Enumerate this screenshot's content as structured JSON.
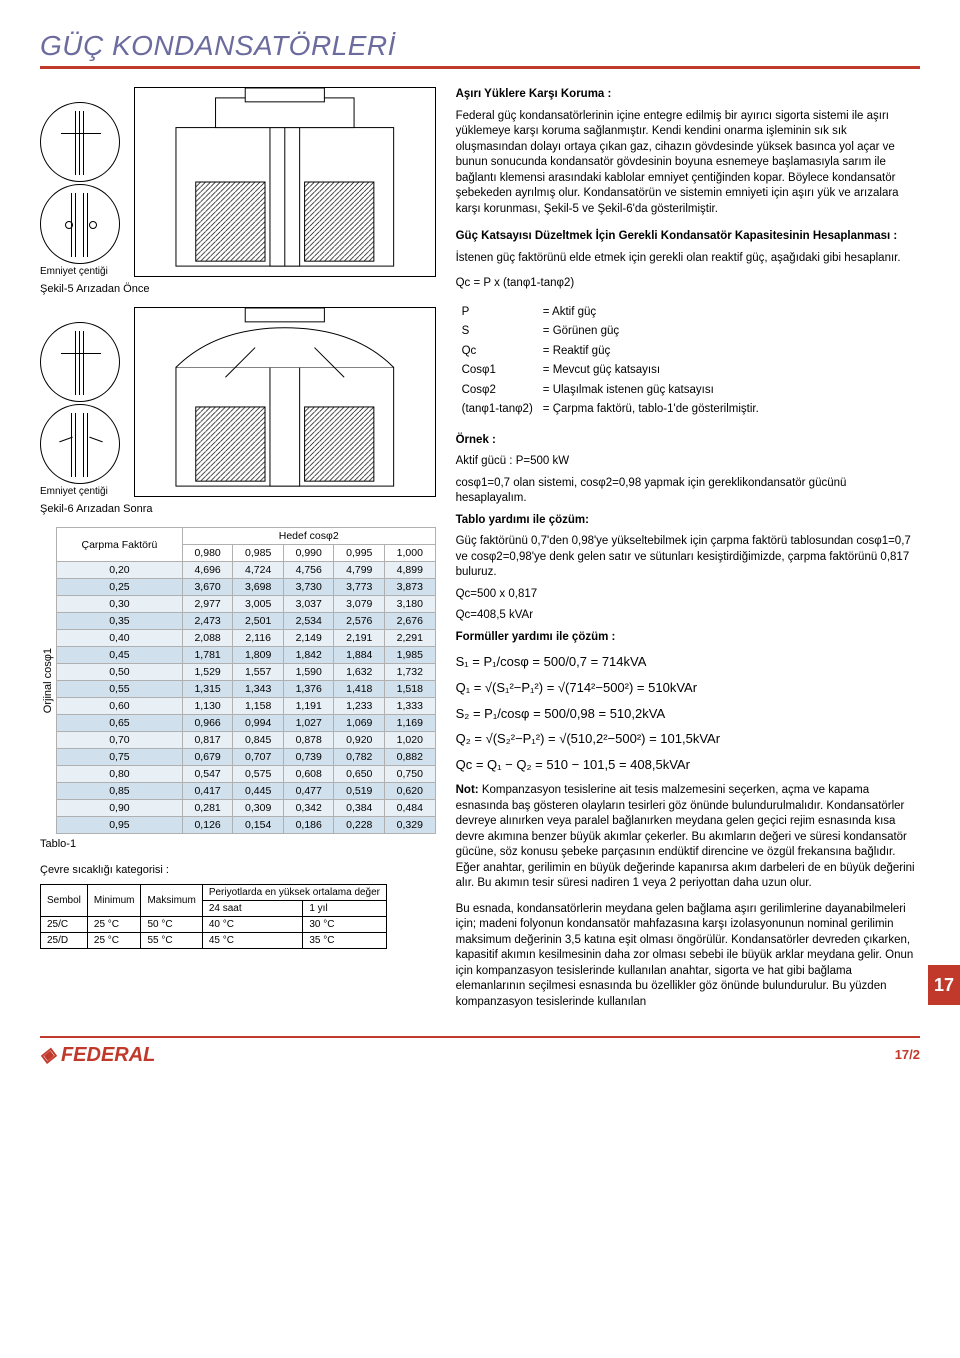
{
  "title": "GÜÇ KONDANSATÖRLERİ",
  "colors": {
    "accent": "#c0392b",
    "title_text": "#6b6b9e",
    "row_light": "#e8f0f6",
    "row_dark": "#d0e0ec",
    "border": "#b0b0b0"
  },
  "sections": {
    "overload": {
      "heading": "Aşırı Yüklere Karşı Koruma :",
      "text": "Federal güç kondansatörlerinin içine entegre edilmiş bir ayırıcı sigorta sistemi ile aşırı yüklemeye karşı koruma sağlanmıştır. Kendi kendini onarma işleminin sık sık oluşmasından dolayı ortaya çıkan gaz, cihazın gövdesinde yüksek basınca yol açar ve bunun sonucunda kondansatör gövdesinin boyuna esnemeye başlamasıyla sarım ile bağlantı klemensi arasındaki kablolar emniyet çentiğinden kopar. Böylece kondansatör şebekeden ayrılmış olur. Kondansatörün ve sistemin emniyeti için aşırı yük ve arızalara karşı korunması, Şekil-5 ve Şekil-6'da gösterilmiştir."
    },
    "calc": {
      "heading": "Güç Katsayısı Düzeltmek İçin Gerekli Kondansatör Kapasitesinin Hesaplanması :",
      "text": "İstenen güç faktörünü elde etmek için gerekli olan reaktif güç, aşağıdaki gibi hesaplanır.",
      "formula": "Qc = P x (tanφ1-tanφ2)"
    },
    "defs": [
      [
        "P",
        "= Aktif güç"
      ],
      [
        "S",
        "= Görünen güç"
      ],
      [
        "Qc",
        "= Reaktif güç"
      ],
      [
        "Cosφ1",
        "= Mevcut güç katsayısı"
      ],
      [
        "Cosφ2",
        "= Ulaşılmak istenen güç katsayısı"
      ],
      [
        "(tanφ1-tanφ2)",
        "= Çarpma faktörü, tablo-1'de gösterilmiştir."
      ]
    ],
    "example": {
      "heading": "Örnek :",
      "line1": "Aktif gücü : P=500 kW",
      "line2": "cosφ1=0,7 olan sistemi, cosφ2=0,98 yapmak için gereklikondansatör gücünü hesaplayalım.",
      "tablo_heading": "Tablo yardımı ile çözüm:",
      "tablo_text": "Güç faktörünü 0,7'den 0,98'ye yükseltebilmek için çarpma faktörü tablosundan cosφ1=0,7 ve cosφ2=0,98'ye denk gelen satır ve sütunları kesiştirdiğimizde, çarpma faktörünü 0,817 buluruz.",
      "qc1": "Qc=500 x 0,817",
      "qc2": "Qc=408,5 kVAr",
      "formul_heading": "Formüller yardımı ile çözüm :"
    },
    "formulas": {
      "s1": "S₁ = P₁/cosφ = 500/0,7 = 714kVA",
      "q1": "Q₁ = √(S₁²−P₁²) = √(714²−500²) = 510kVAr",
      "s2": "S₂ = P₁/cosφ = 500/0,98 = 510,2kVA",
      "q2": "Q₂ = √(S₂²−P₁²) = √(510,2²−500²) = 101,5kVAr",
      "qc": "Qc = Q₁ − Q₂ = 510 − 101,5 = 408,5kVAr"
    },
    "note": {
      "heading": "Not:",
      "p1": "Kompanzasyon tesislerine ait tesis malzemesini seçerken, açma ve kapama esnasında baş gösteren olayların tesirleri göz önünde bulundurulmalıdır. Kondansatörler devreye alınırken veya paralel bağlanırken meydana gelen geçici rejim esnasında kısa devre akımına benzer büyük akımlar çekerler. Bu akımların değeri ve süresi kondansatör gücüne, söz konusu şebeke parçasının endüktif direncine ve özgül frekansına bağlıdır. Eğer anahtar, gerilimin en büyük değerinde kapanırsa akım darbeleri de en büyük değerini alır. Bu akımın tesir süresi nadiren 1 veya 2 periyottan daha uzun olur.",
      "p2": "Bu esnada, kondansatörlerin meydana gelen bağlama aşırı gerilimlerine dayanabilmeleri için; madeni folyonun kondansatör mahfazasına karşı izolasyonunun nominal gerilimin maksimum değerinin 3,5 katına eşit olması öngörülür. Kondansatörler devreden çıkarken, kapasitif akımın kesilmesinin daha zor olması sebebi ile büyük arklar meydana gelir. Onun için kompanzasyon tesislerinde kullanılan anahtar, sigorta ve hat gibi bağlama elemanlarının seçilmesi esnasında bu özellikler göz önünde bulundurulur. Bu yüzden kompanzasyon tesislerinde kullanılan"
    }
  },
  "figures": {
    "fig5": {
      "caption": "Şekil-5 Arızadan Önce",
      "label": "Emniyet çentiği"
    },
    "fig6": {
      "caption": "Şekil-6 Arızadan Sonra",
      "label": "Emniyet çentiği"
    }
  },
  "factor_table": {
    "corner": "Çarpma Faktörü",
    "header_title": "Hedef cosφ2",
    "y_label": "Orjinal cosφ1",
    "caption": "Tablo-1",
    "target_cos": [
      "0,980",
      "0,985",
      "0,990",
      "0,995",
      "1,000"
    ],
    "rows": [
      [
        "0,20",
        "4,696",
        "4,724",
        "4,756",
        "4,799",
        "4,899"
      ],
      [
        "0,25",
        "3,670",
        "3,698",
        "3,730",
        "3,773",
        "3,873"
      ],
      [
        "0,30",
        "2,977",
        "3,005",
        "3,037",
        "3,079",
        "3,180"
      ],
      [
        "0,35",
        "2,473",
        "2,501",
        "2,534",
        "2,576",
        "2,676"
      ],
      [
        "0,40",
        "2,088",
        "2,116",
        "2,149",
        "2,191",
        "2,291"
      ],
      [
        "0,45",
        "1,781",
        "1,809",
        "1,842",
        "1,884",
        "1,985"
      ],
      [
        "0,50",
        "1,529",
        "1,557",
        "1,590",
        "1,632",
        "1,732"
      ],
      [
        "0,55",
        "1,315",
        "1,343",
        "1,376",
        "1,418",
        "1,518"
      ],
      [
        "0,60",
        "1,130",
        "1,158",
        "1,191",
        "1,233",
        "1,333"
      ],
      [
        "0,65",
        "0,966",
        "0,994",
        "1,027",
        "1,069",
        "1,169"
      ],
      [
        "0,70",
        "0,817",
        "0,845",
        "0,878",
        "0,920",
        "1,020"
      ],
      [
        "0,75",
        "0,679",
        "0,707",
        "0,739",
        "0,782",
        "0,882"
      ],
      [
        "0,80",
        "0,547",
        "0,575",
        "0,608",
        "0,650",
        "0,750"
      ],
      [
        "0,85",
        "0,417",
        "0,445",
        "0,477",
        "0,519",
        "0,620"
      ],
      [
        "0,90",
        "0,281",
        "0,309",
        "0,342",
        "0,384",
        "0,484"
      ],
      [
        "0,95",
        "0,126",
        "0,154",
        "0,186",
        "0,228",
        "0,329"
      ]
    ]
  },
  "temp": {
    "title": "Çevre sıcaklığı kategorisi :",
    "periods_header": "Periyotlarda en yüksek ortalama değer",
    "columns": [
      "Sembol",
      "Minimum",
      "Maksimum",
      "24 saat",
      "1 yıl"
    ],
    "rows": [
      [
        "25/C",
        "25 °C",
        "50 °C",
        "40 °C",
        "30 °C"
      ],
      [
        "25/D",
        "25 °C",
        "55 °C",
        "45 °C",
        "35 °C"
      ]
    ]
  },
  "page_tab": "17",
  "footer": {
    "logo": "FEDERAL",
    "pageno": "17/2"
  }
}
